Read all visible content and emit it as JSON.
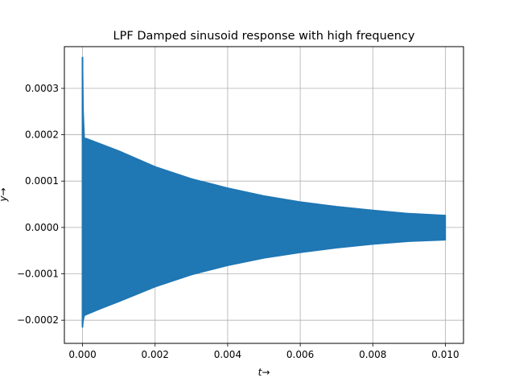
{
  "chart_data": {
    "type": "line",
    "title": "LPF Damped sinusoid response with high frequency",
    "xlabel": "t→",
    "ylabel": "y→",
    "xlim": [
      -0.0005,
      0.0105
    ],
    "ylim": [
      -0.00025,
      0.00039
    ],
    "grid": true,
    "x_ticks": [
      0.0,
      0.002,
      0.004,
      0.006,
      0.008,
      0.01
    ],
    "x_tick_labels": [
      "0.000",
      "0.002",
      "0.004",
      "0.006",
      "0.008",
      "0.010"
    ],
    "y_ticks": [
      -0.0002,
      -0.0001,
      0.0,
      0.0001,
      0.0002,
      0.0003
    ],
    "y_tick_labels": [
      "−0.0002",
      "−0.0001",
      "0.0000",
      "0.0001",
      "0.0002",
      "0.0003"
    ],
    "series": [
      {
        "color": "#1f77b4",
        "style": "dense oscillation (filled envelope)",
        "x": [
          0.0,
          2e-05,
          5e-05,
          0.0001,
          0.0005,
          0.001,
          0.002,
          0.003,
          0.004,
          0.005,
          0.006,
          0.007,
          0.008,
          0.009,
          0.01
        ],
        "upper": [
          0.000367,
          0.00025,
          0.000192,
          0.000192,
          0.00018,
          0.000165,
          0.000131,
          0.000105,
          8.5e-05,
          6.8e-05,
          5.5e-05,
          4.5e-05,
          3.7e-05,
          3e-05,
          2.6e-05
        ],
        "lower": [
          -0.000215,
          -0.0002,
          -0.00019,
          -0.000188,
          -0.000175,
          -0.00016,
          -0.000128,
          -0.000102,
          -8.2e-05,
          -6.6e-05,
          -5.4e-05,
          -4.4e-05,
          -3.6e-05,
          -3e-05,
          -2.7e-05
        ]
      }
    ]
  }
}
